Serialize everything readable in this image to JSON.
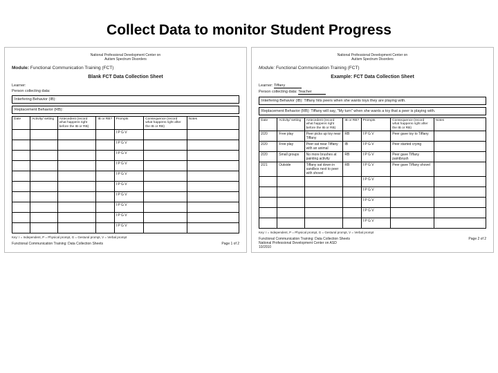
{
  "title": "Collect Data to monitor Student Progress",
  "org": {
    "line1": "National Professional Development Center on",
    "line2": "Autism Spectrum Disorders"
  },
  "module_label": "Module:",
  "module_name": "Functional Communication Training (FCT)",
  "left": {
    "sheet_title": "Blank FCT Data Collection Sheet",
    "learner_label": "Learner:",
    "collector_label": "Person collecting data:",
    "ib_label": "Interfering Behavior (IB):",
    "rb_label": "Replacement Behavior (RB):",
    "key": "Key: I = Independent, P = Physical prompt, G = Gestural prompt, V = Verbal prompt",
    "footer_left": "Functional Communication Training: Data Collection Sheets",
    "footer_right": "Page 1 of 2"
  },
  "right": {
    "sheet_title": "Example: FCT Data Collection Sheet",
    "learner_label": "Learner:",
    "learner_value": "Tiffany",
    "collector_label": "Person collecting data:",
    "collector_value": "Teacher",
    "ib_text": "Interfering Behavior (IB): Tiffany hits peers when she wants toys they are playing with.",
    "rb_text": "Replacement Behavior (RB): Tiffany will say, \"My turn\" when she wants a toy that a peer is playing with.",
    "key": "Key: I = Independent, P = Physical prompt, G = Gestural prompt, V = Verbal prompt",
    "footer_left": "Functional Communication Training: Data Collection Sheets\nNational Professional Development Center on ASD\n10/2010",
    "footer_right": "Page 2 of 2"
  },
  "columns": {
    "date": "Date",
    "activity": "Activity/ setting",
    "antecedent": "Antecedent (record what happens right before the IB or RB)",
    "ibrb": "IB or RB?",
    "prompts": "Prompts",
    "consequence": "Consequence (record what happens right after the IB or RB)",
    "notes": "Notes"
  },
  "prompt_codes": "I  P  G  V",
  "right_rows": [
    {
      "date": "2/20",
      "act": "Free play",
      "ant": "Peer picks up toy near Tiffany",
      "ibrb": "RB",
      "prom": "I  P  G  V",
      "cons": "Peer gave toy to Tiffany"
    },
    {
      "date": "2/20",
      "act": "Free play",
      "ant": "Peer sat near Tiffany with an animal",
      "ibrb": "IB",
      "prom": "I  P  G  V",
      "cons": "Peer started crying"
    },
    {
      "date": "2/20",
      "act": "Small groups",
      "ant": "No more brushes at painting activity",
      "ibrb": "RB",
      "prom": "I  P  G  V",
      "cons": "Peer gave Tiffany paintbrush"
    },
    {
      "date": "2/21",
      "act": "Outside",
      "ant": "Tiffany sat down in sandbox next to peer with shovel",
      "ibrb": "RB",
      "prom": "I  P  G  V",
      "cons": "Peer gave Tiffany shovel"
    }
  ]
}
